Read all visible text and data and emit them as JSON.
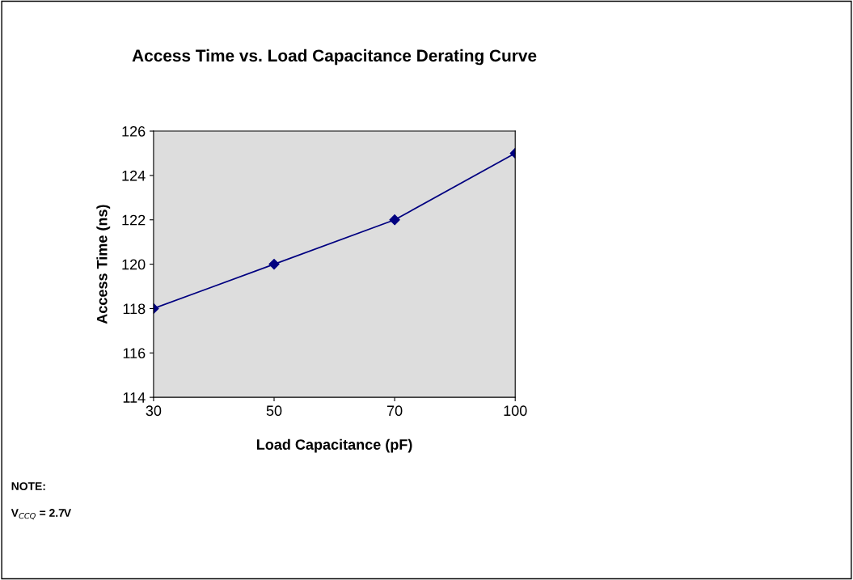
{
  "chart_data": {
    "type": "line",
    "title": "Access Time vs. Load Capacitance Derating Curve",
    "xlabel": "Load Capacitance (pF)",
    "ylabel": "Access Time (ns)",
    "categories": [
      "30",
      "50",
      "70",
      "100"
    ],
    "series": [
      {
        "color": "#000080",
        "values": [
          118,
          120,
          122,
          125
        ]
      }
    ],
    "ylim": [
      114,
      126
    ],
    "yticks": [
      114,
      116,
      118,
      120,
      122,
      124,
      126
    ],
    "marker": "diamond",
    "line_style": "solid",
    "grid": false,
    "annotations": [
      "NOTE:",
      "V$_{CCQ}$ = 2.7V"
    ]
  }
}
